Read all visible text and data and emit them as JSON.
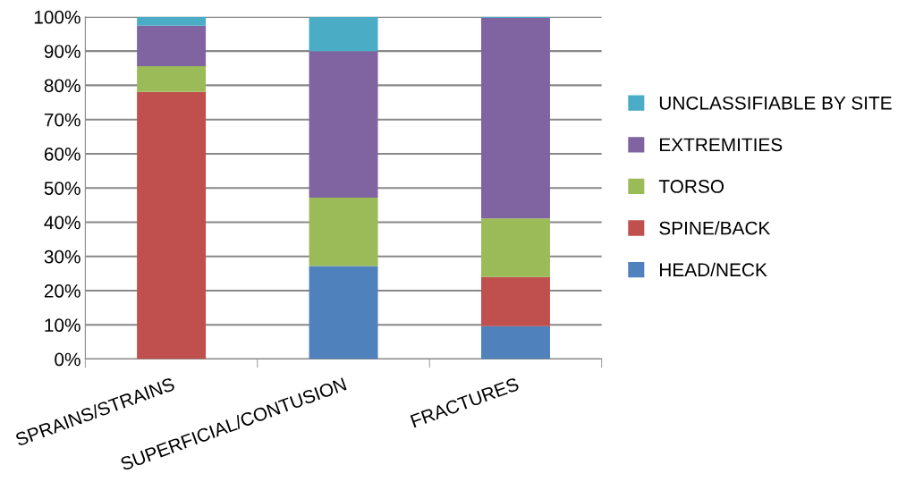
{
  "chart_data": {
    "type": "bar",
    "stacked": true,
    "categories": [
      "SPRAINS/STRAINS",
      "SUPERFICIAL/CONTUSION",
      "FRACTURES"
    ],
    "series": [
      {
        "name": "HEAD/NECK",
        "color": "#4f81bd",
        "values": [
          0,
          27.2,
          9.6
        ]
      },
      {
        "name": "SPINE/BACK",
        "color": "#c0504d",
        "values": [
          78.1,
          0,
          14.4
        ]
      },
      {
        "name": "TORSO",
        "color": "#9bbb59",
        "values": [
          7.5,
          20.0,
          17.1
        ]
      },
      {
        "name": "EXTREMITIES",
        "color": "#8064a2",
        "values": [
          11.8,
          42.8,
          58.6
        ]
      },
      {
        "name": "UNCLASSIFIABLE BY SITE",
        "color": "#4bacc6",
        "values": [
          2.6,
          10.0,
          0.3
        ]
      }
    ],
    "ylim": [
      0,
      100
    ],
    "yticks": [
      {
        "value": 0,
        "label": "0%"
      },
      {
        "value": 10,
        "label": "10%"
      },
      {
        "value": 20,
        "label": "20%"
      },
      {
        "value": 30,
        "label": "30%"
      },
      {
        "value": 40,
        "label": "40%"
      },
      {
        "value": 50,
        "label": "50%"
      },
      {
        "value": 60,
        "label": "60%"
      },
      {
        "value": 70,
        "label": "70%"
      },
      {
        "value": 80,
        "label": "80%"
      },
      {
        "value": 90,
        "label": "90%"
      },
      {
        "value": 100,
        "label": "100%"
      }
    ],
    "grid": "y",
    "legend": "right"
  }
}
